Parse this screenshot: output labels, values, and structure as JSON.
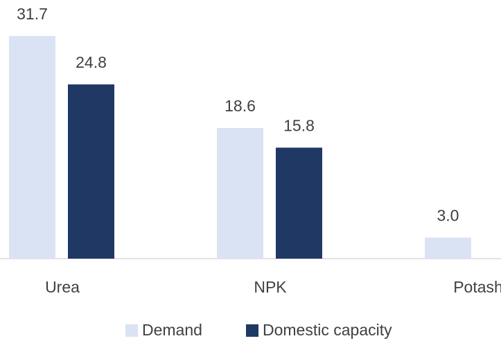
{
  "chart_data": {
    "type": "bar",
    "categories": [
      "Urea",
      "NPK",
      "Potash"
    ],
    "series": [
      {
        "name": "Demand",
        "color": "#dae3f3",
        "values": [
          31.7,
          18.6,
          3.0
        ],
        "value_labels": [
          "31.7",
          "18.6",
          "3.0"
        ]
      },
      {
        "name": "Domestic capacity",
        "color": "#203864",
        "values": [
          24.8,
          15.8,
          null
        ],
        "value_labels": [
          "24.8",
          "15.8",
          null
        ]
      }
    ]
  }
}
